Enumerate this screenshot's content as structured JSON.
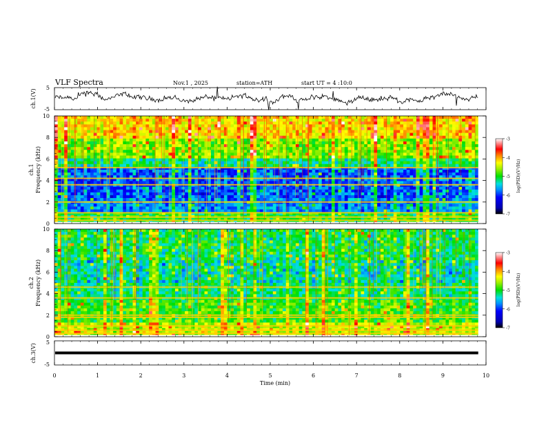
{
  "header": {
    "title": "VLF Spectra",
    "date": "Nov.1 , 2025",
    "station": "station=ATH",
    "start": "start UT = 4 :10:0"
  },
  "chart_data": [
    {
      "type": "line",
      "name": "ch1-waveform",
      "ylabel": "ch.1(V)",
      "ylim": [
        -5,
        5
      ],
      "yticks": [
        "5",
        "-5"
      ]
    },
    {
      "type": "heatmap",
      "name": "ch1-spectrogram",
      "ylabel": [
        "ch.1",
        "Frequency (kHz)"
      ],
      "ylim": [
        0,
        10
      ],
      "yticks": [
        "0",
        "2",
        "4",
        "6",
        "8",
        "10"
      ],
      "colorbar": {
        "label": "log(PSD)(V²/Hz)",
        "range": [
          -7,
          -3
        ],
        "ticks": [
          "-3",
          "-4",
          "-5",
          "-6",
          "-7"
        ]
      },
      "bands_khz": [
        0.3,
        0.6,
        1.0,
        2.0,
        3.6,
        4.2,
        5.2
      ]
    },
    {
      "type": "heatmap",
      "name": "ch2-spectrogram",
      "ylabel": [
        "ch.2",
        "Frequency (kHz)"
      ],
      "ylim": [
        0,
        10
      ],
      "yticks": [
        "0",
        "2",
        "4",
        "6",
        "8",
        "10"
      ],
      "colorbar": {
        "label": "log(PSD)(V²/Hz)",
        "range": [
          -7,
          -3
        ],
        "ticks": [
          "-3",
          "-4",
          "-5",
          "-6",
          "-7"
        ]
      },
      "bands_khz": [
        0.3,
        0.6,
        1.0,
        1.8,
        2.0,
        3.6,
        4.6
      ]
    },
    {
      "type": "line",
      "name": "ch3-waveform",
      "ylabel": "ch.3(V)",
      "ylim": [
        -5,
        5
      ],
      "yticks": [
        "5",
        "-5"
      ],
      "level_v": 0
    }
  ],
  "xaxis": {
    "label": "Time (min)",
    "range": [
      0,
      10
    ],
    "ticks": [
      "0",
      "1",
      "2",
      "3",
      "4",
      "5",
      "6",
      "7",
      "8",
      "9",
      "10"
    ],
    "data_end": 9.82
  }
}
